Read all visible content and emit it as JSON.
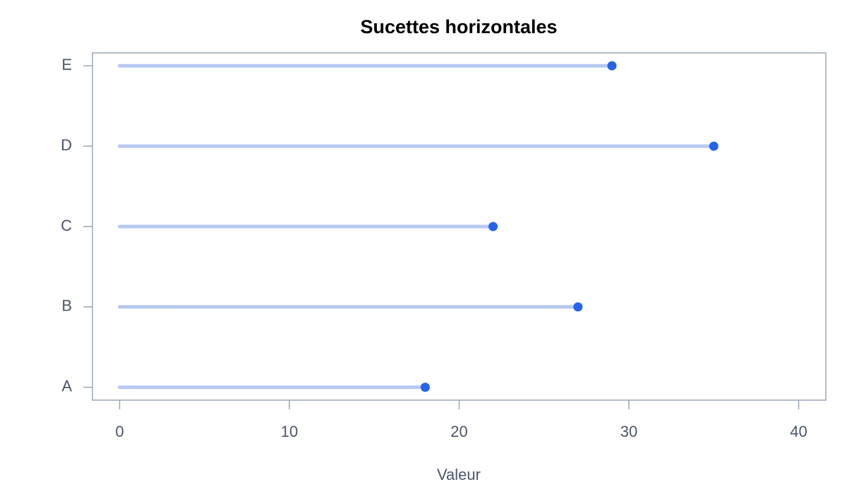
{
  "chart_data": {
    "type": "lollipop",
    "title": "Sucettes horizontales",
    "x_label": "Valeur",
    "categories": [
      "A",
      "B",
      "C",
      "D",
      "E"
    ],
    "values": [
      18,
      27,
      22,
      35,
      29
    ],
    "stem_color": "#b6c8f0",
    "color": "#2563eb",
    "xlim": [
      -1.6,
      41.6
    ],
    "xticks": [
      0,
      10,
      20,
      30,
      40
    ],
    "grid": false
  }
}
